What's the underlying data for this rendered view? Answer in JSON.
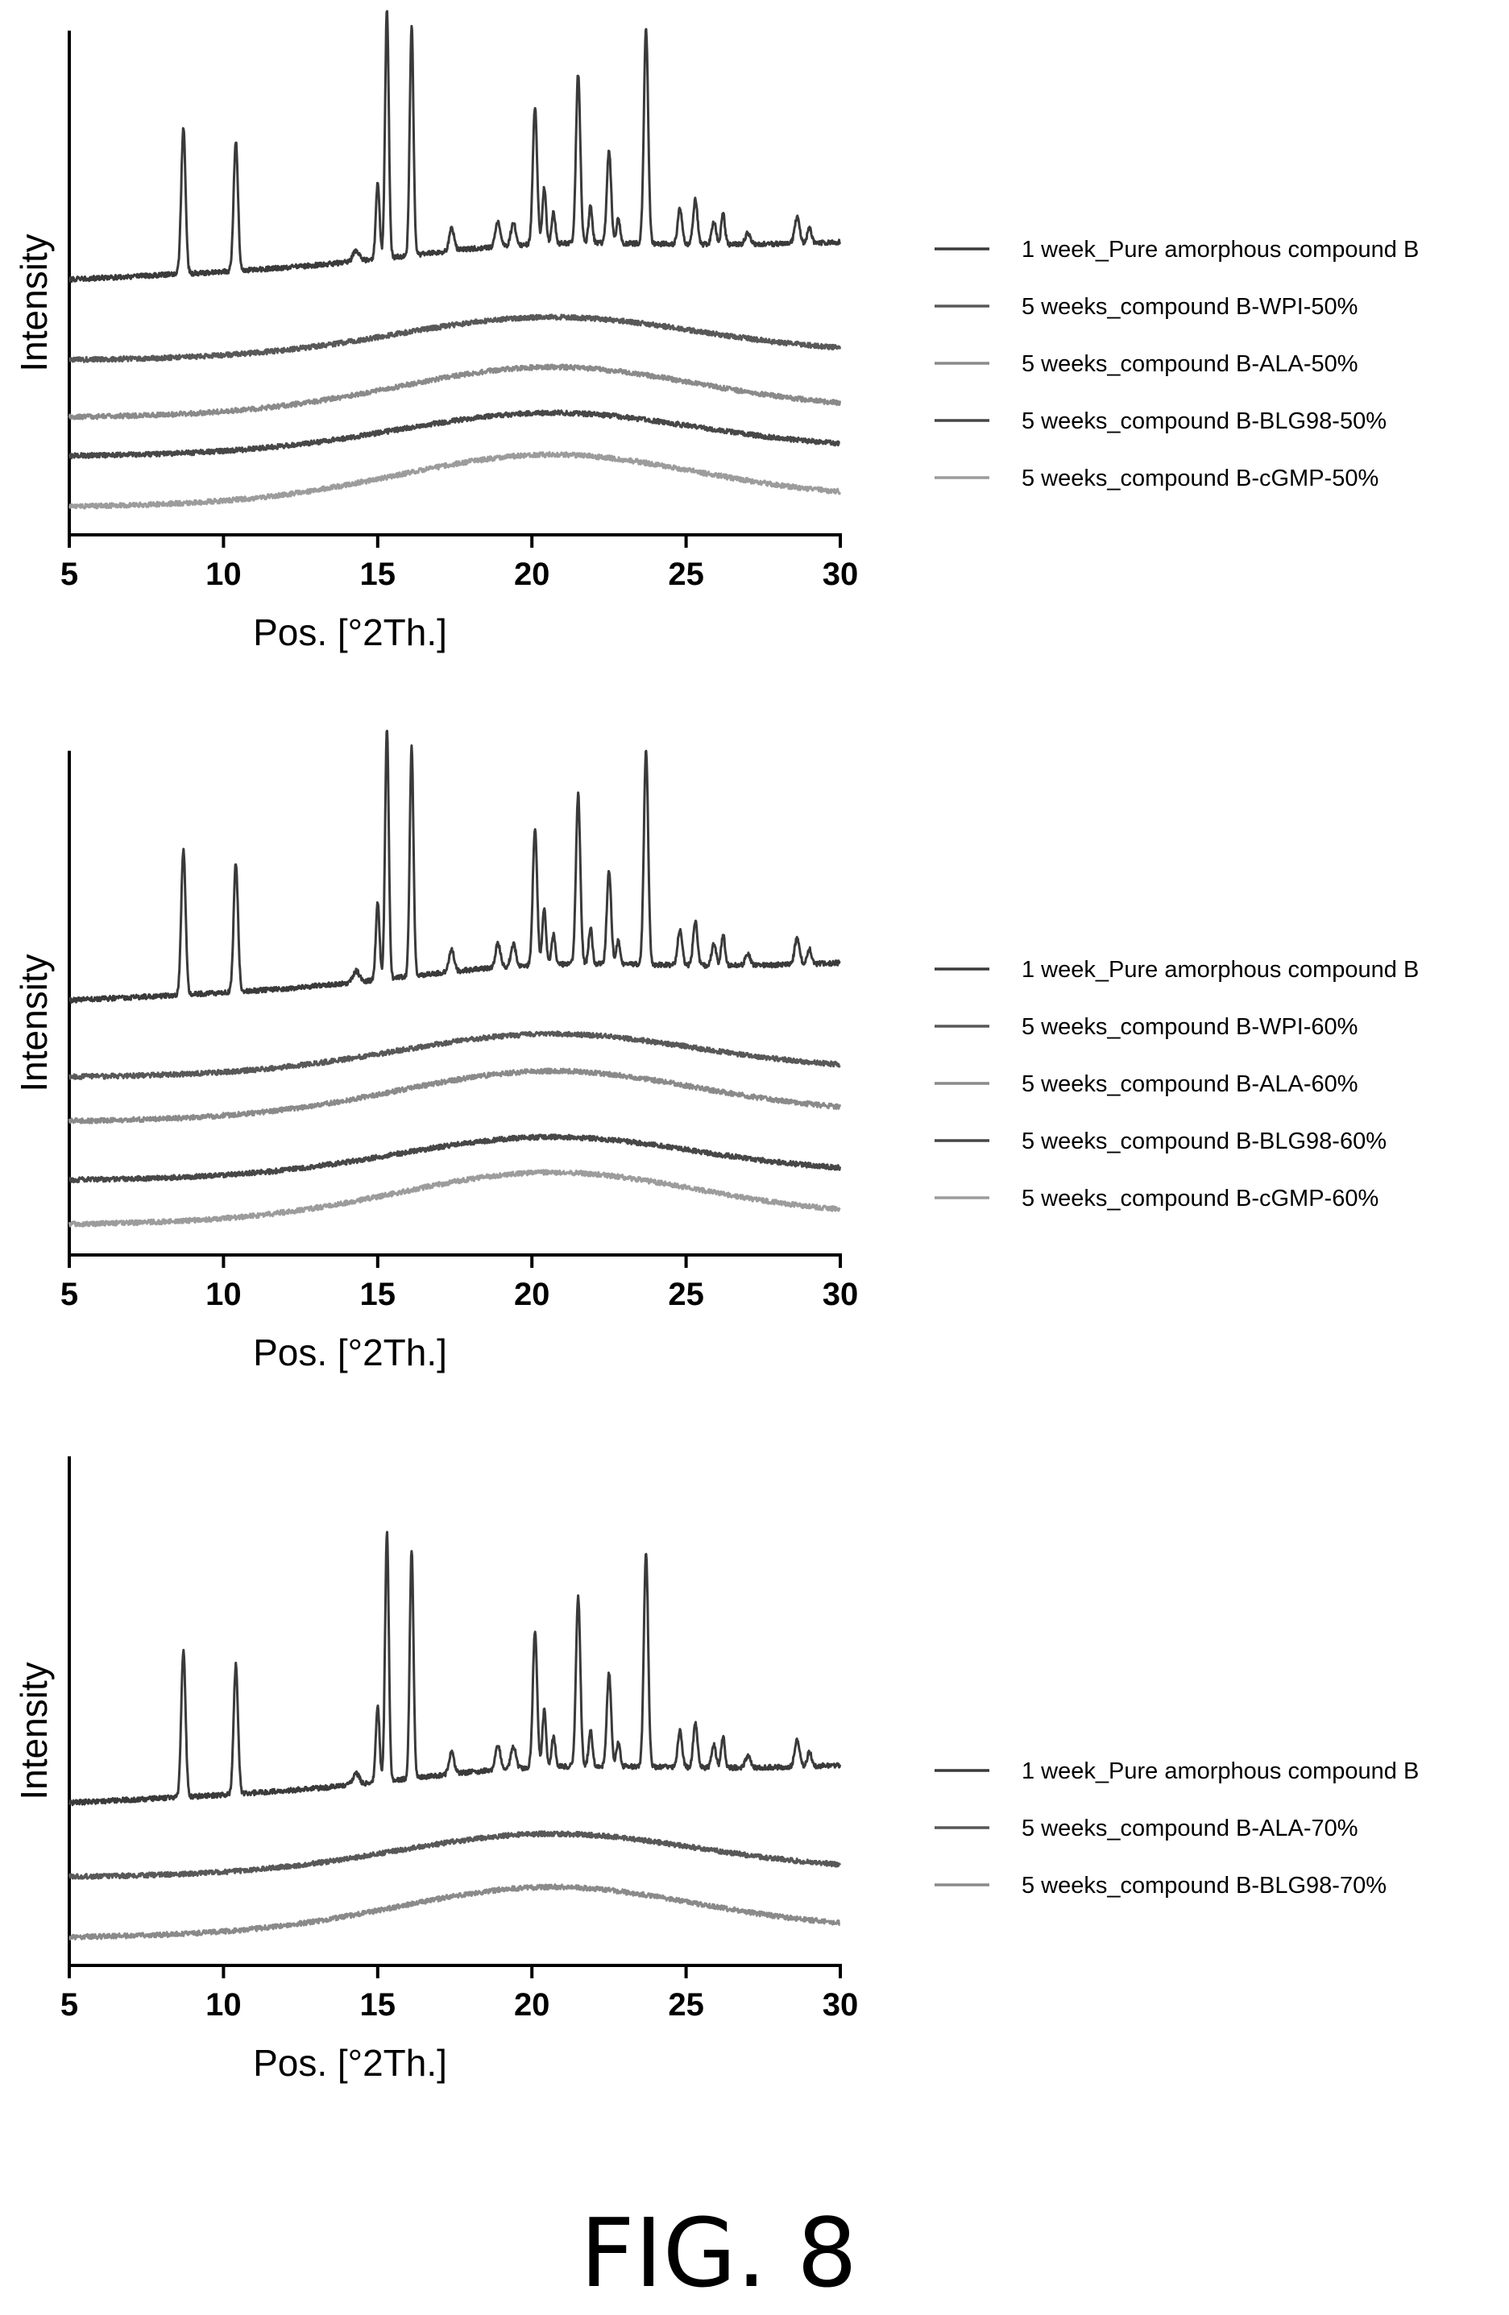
{
  "figure_label": "FIG. 8",
  "chart_data": [
    {
      "type": "line",
      "xlabel": "Pos. [°2Th.]",
      "ylabel": "Intensity",
      "xlim": [
        5,
        30
      ],
      "xticks": [
        5,
        10,
        15,
        20,
        25,
        30
      ],
      "legend_position": "right",
      "series": [
        {
          "name": "1 week_Pure amorphous compound B",
          "pattern": "crystalline",
          "color": "#3a3a3a"
        },
        {
          "name": "5 weeks_compound B-WPI-50%",
          "pattern": "amorphous",
          "color": "#585858"
        },
        {
          "name": "5 weeks_compound B-ALA-50%",
          "pattern": "amorphous",
          "color": "#8a8a8a"
        },
        {
          "name": "5 weeks_compound B-BLG98-50%",
          "pattern": "amorphous",
          "color": "#474747"
        },
        {
          "name": "5 weeks_compound B-cGMP-50%",
          "pattern": "amorphous",
          "color": "#9c9c9c"
        }
      ]
    },
    {
      "type": "line",
      "xlabel": "Pos. [°2Th.]",
      "ylabel": "Intensity",
      "xlim": [
        5,
        30
      ],
      "xticks": [
        5,
        10,
        15,
        20,
        25,
        30
      ],
      "legend_position": "right",
      "series": [
        {
          "name": "1 week_Pure amorphous compound B",
          "pattern": "crystalline",
          "color": "#3a3a3a"
        },
        {
          "name": "5 weeks_compound B-WPI-60%",
          "pattern": "amorphous",
          "color": "#585858"
        },
        {
          "name": "5 weeks_compound B-ALA-60%",
          "pattern": "amorphous",
          "color": "#8a8a8a"
        },
        {
          "name": "5 weeks_compound B-BLG98-60%",
          "pattern": "amorphous",
          "color": "#474747"
        },
        {
          "name": "5 weeks_compound B-cGMP-60%",
          "pattern": "amorphous",
          "color": "#9c9c9c"
        }
      ]
    },
    {
      "type": "line",
      "xlabel": "Pos. [°2Th.]",
      "ylabel": "Intensity",
      "xlim": [
        5,
        30
      ],
      "xticks": [
        5,
        10,
        15,
        20,
        25,
        30
      ],
      "legend_position": "right",
      "series": [
        {
          "name": "1 week_Pure amorphous compound B",
          "pattern": "crystalline",
          "color": "#3a3a3a"
        },
        {
          "name": "5 weeks_compound B-ALA-70%",
          "pattern": "amorphous",
          "color": "#585858"
        },
        {
          "name": "5 weeks_compound B-BLG98-70%",
          "pattern": "amorphous",
          "color": "#8a8a8a"
        }
      ]
    }
  ]
}
